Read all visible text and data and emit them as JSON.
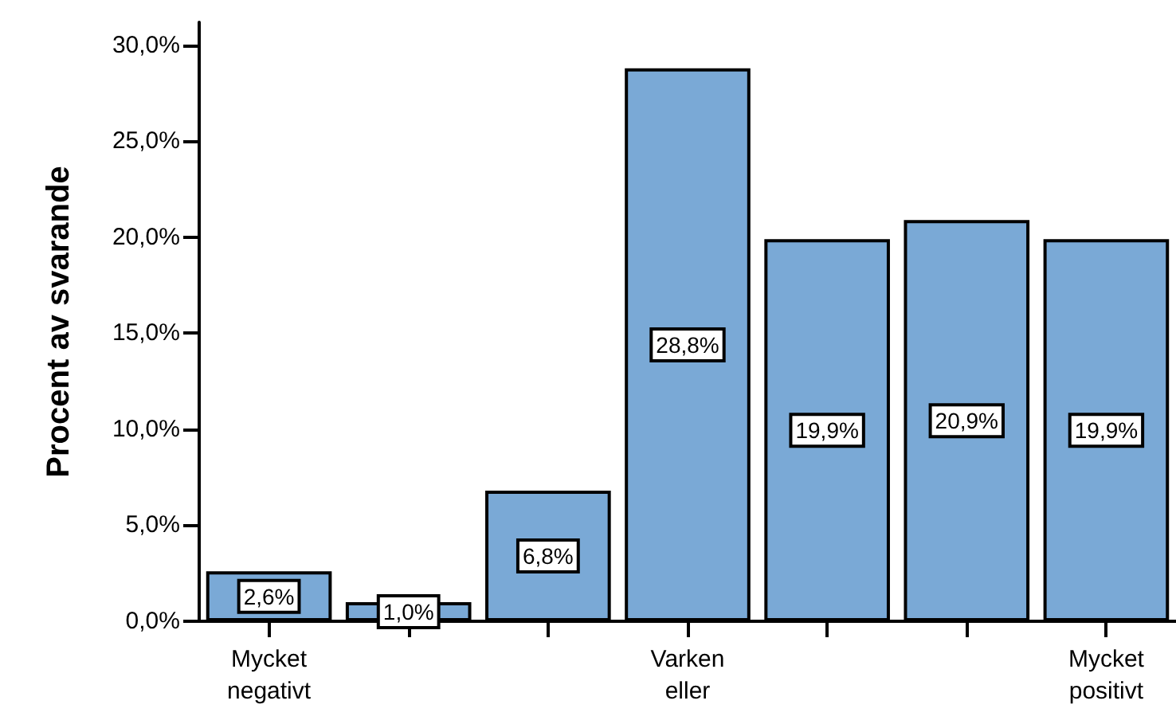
{
  "chart_data": {
    "type": "bar",
    "ylabel": "Procent av svarande",
    "categories": [
      "Mycket\nnegativt",
      null,
      null,
      "Varken\neller",
      null,
      null,
      "Mycket\npositivt"
    ],
    "values": [
      2.6,
      1.0,
      6.8,
      28.8,
      19.9,
      20.9,
      19.9
    ],
    "value_labels": [
      "2,6%",
      "1,0%",
      "6,8%",
      "28,8%",
      "19,9%",
      "20,9%",
      "19,9%"
    ],
    "color": "#7aa9d6",
    "ylim": [
      0,
      31.2
    ],
    "yticks": [
      {
        "value": 0,
        "label": "0,0%"
      },
      {
        "value": 5,
        "label": "5,0%"
      },
      {
        "value": 10,
        "label": "10,0%"
      },
      {
        "value": 15,
        "label": "15,0%"
      },
      {
        "value": 20,
        "label": "20,0%"
      },
      {
        "value": 25,
        "label": "25,0%"
      },
      {
        "value": 30,
        "label": "30,0%"
      }
    ],
    "grid": false
  }
}
